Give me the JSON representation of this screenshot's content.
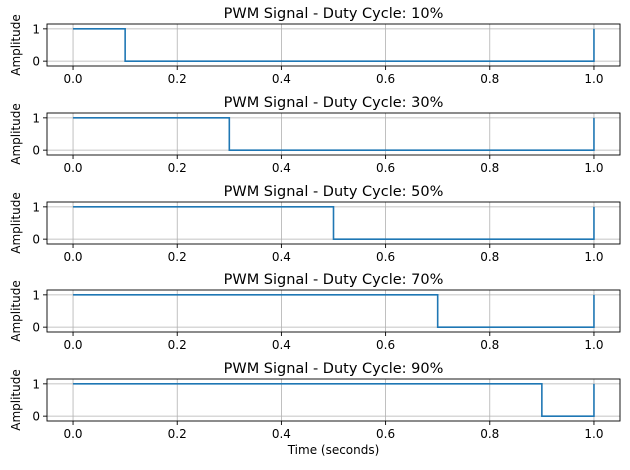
{
  "chart_data": [
    {
      "type": "line",
      "title": "PWM Signal - Duty Cycle: 10%",
      "ylabel": "Amplitude",
      "xlabel": "",
      "duty_cycle": 0.1,
      "x": [
        0,
        0.1,
        0.1,
        1.0,
        1.0
      ],
      "y": [
        1,
        1,
        0,
        0,
        1
      ],
      "xlim": [
        -0.05,
        1.05
      ],
      "ylim": [
        -0.15,
        1.15
      ],
      "xticks": [
        "0.0",
        "0.2",
        "0.4",
        "0.6",
        "0.8",
        "1.0"
      ],
      "yticks": [
        "0",
        "1"
      ],
      "grid": true,
      "color": "#1f77b4"
    },
    {
      "type": "line",
      "title": "PWM Signal - Duty Cycle: 30%",
      "ylabel": "Amplitude",
      "xlabel": "",
      "duty_cycle": 0.3,
      "x": [
        0,
        0.3,
        0.3,
        1.0,
        1.0
      ],
      "y": [
        1,
        1,
        0,
        0,
        1
      ],
      "xlim": [
        -0.05,
        1.05
      ],
      "ylim": [
        -0.15,
        1.15
      ],
      "xticks": [
        "0.0",
        "0.2",
        "0.4",
        "0.6",
        "0.8",
        "1.0"
      ],
      "yticks": [
        "0",
        "1"
      ],
      "grid": true,
      "color": "#1f77b4"
    },
    {
      "type": "line",
      "title": "PWM Signal - Duty Cycle: 50%",
      "ylabel": "Amplitude",
      "xlabel": "",
      "duty_cycle": 0.5,
      "x": [
        0,
        0.5,
        0.5,
        1.0,
        1.0
      ],
      "y": [
        1,
        1,
        0,
        0,
        1
      ],
      "xlim": [
        -0.05,
        1.05
      ],
      "ylim": [
        -0.15,
        1.15
      ],
      "xticks": [
        "0.0",
        "0.2",
        "0.4",
        "0.6",
        "0.8",
        "1.0"
      ],
      "yticks": [
        "0",
        "1"
      ],
      "grid": true,
      "color": "#1f77b4"
    },
    {
      "type": "line",
      "title": "PWM Signal - Duty Cycle: 70%",
      "ylabel": "Amplitude",
      "xlabel": "",
      "duty_cycle": 0.7,
      "x": [
        0,
        0.7,
        0.7,
        1.0,
        1.0
      ],
      "y": [
        1,
        1,
        0,
        0,
        1
      ],
      "xlim": [
        -0.05,
        1.05
      ],
      "ylim": [
        -0.15,
        1.15
      ],
      "xticks": [
        "0.0",
        "0.2",
        "0.4",
        "0.6",
        "0.8",
        "1.0"
      ],
      "yticks": [
        "0",
        "1"
      ],
      "grid": true,
      "color": "#1f77b4"
    },
    {
      "type": "line",
      "title": "PWM Signal - Duty Cycle: 90%",
      "ylabel": "Amplitude",
      "xlabel": "Time (seconds)",
      "duty_cycle": 0.9,
      "x": [
        0,
        0.9,
        0.9,
        1.0,
        1.0
      ],
      "y": [
        1,
        1,
        0,
        0,
        1
      ],
      "xlim": [
        -0.05,
        1.05
      ],
      "ylim": [
        -0.15,
        1.15
      ],
      "xticks": [
        "0.0",
        "0.2",
        "0.4",
        "0.6",
        "0.8",
        "1.0"
      ],
      "yticks": [
        "0",
        "1"
      ],
      "grid": true,
      "color": "#1f77b4"
    }
  ]
}
